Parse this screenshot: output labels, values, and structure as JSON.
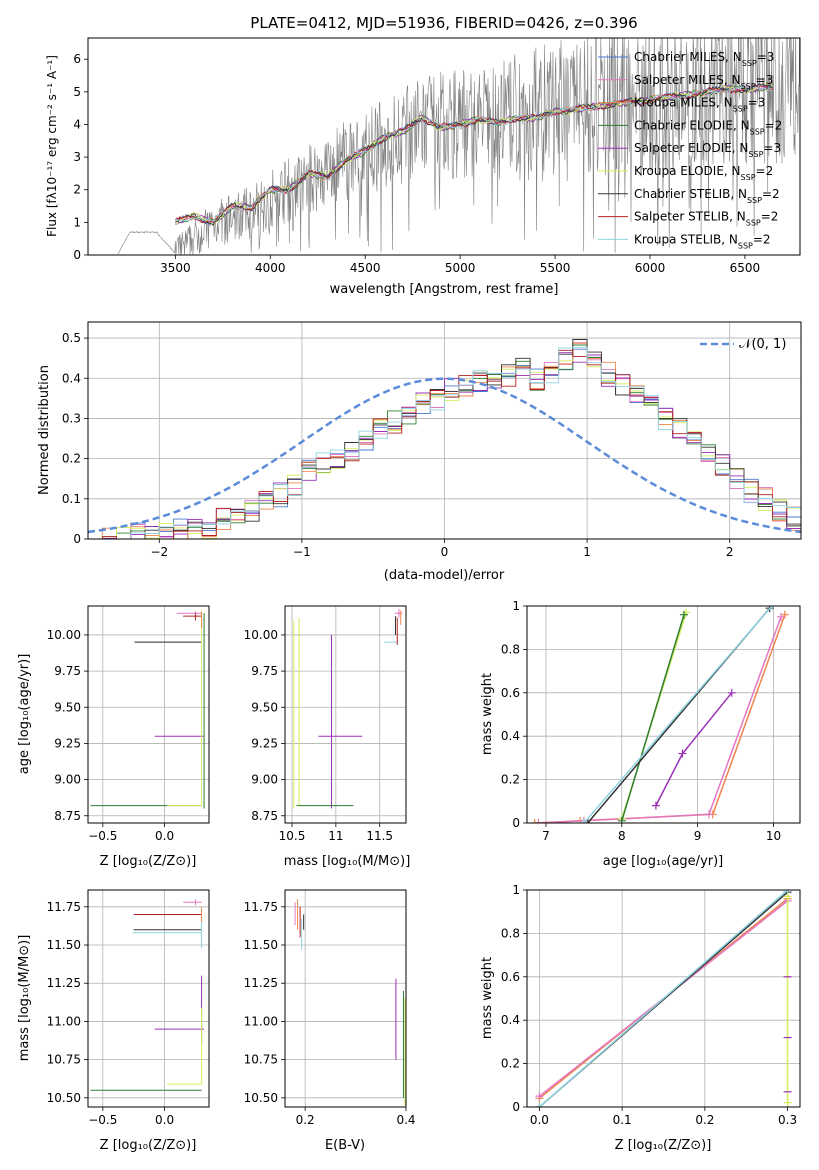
{
  "figure": {
    "title": "PLATE=0412, MJD=51936, FIBERID=0426, z=0.396"
  },
  "series_styles": [
    {
      "name": "Chabrier MILES",
      "nssp": "3",
      "color": "#4878d0"
    },
    {
      "name": "Salpeter MILES",
      "nssp": "3",
      "color": "#e377c2"
    },
    {
      "name": "Kroupa MILES",
      "nssp": "3",
      "color": "#ee854a"
    },
    {
      "name": "Chabrier ELODIE",
      "nssp": "2",
      "color": "#2e7d32"
    },
    {
      "name": "Salpeter ELODIE",
      "nssp": "3",
      "color": "#9b30b8"
    },
    {
      "name": "Kroupa ELODIE",
      "nssp": "2",
      "color": "#d4ee5e"
    },
    {
      "name": "Chabrier STELIB",
      "nssp": "2",
      "color": "#333333"
    },
    {
      "name": "Salpeter STELIB",
      "nssp": "2",
      "color": "#b22222"
    },
    {
      "name": "Kroupa STELIB",
      "nssp": "2",
      "color": "#8fd3e0"
    }
  ],
  "chart_data": [
    {
      "id": "spectrum",
      "type": "line",
      "xlabel": "wavelength [Angstrom, rest frame]",
      "ylabel": "Flux [fλ10⁻¹⁷ erg cm⁻² s⁻¹ A⁻¹]",
      "xlim": [
        3040,
        6790
      ],
      "ylim": [
        0,
        6.65
      ],
      "xticks": [
        3500,
        4000,
        4500,
        5000,
        5500,
        6000,
        6500
      ],
      "yticks": [
        0,
        1,
        2,
        3,
        4,
        5,
        6
      ],
      "grid": false,
      "legend_position": "upper-right",
      "data_color": "#808080",
      "data_anchor_x": [
        3200,
        3260,
        3400,
        3500,
        3700,
        3900,
        4000,
        4200,
        4400,
        4600,
        4800,
        5000,
        5200,
        5400,
        5600,
        5800,
        6000,
        6200,
        6400,
        6600
      ],
      "data_anchor_y": [
        0.05,
        0.7,
        0.7,
        0.05,
        1.0,
        1.3,
        1.7,
        2.3,
        2.9,
        3.4,
        3.9,
        4.1,
        4.1,
        4.3,
        4.5,
        4.6,
        4.8,
        5.0,
        5.2,
        5.1
      ],
      "model_anchor_x": [
        3500,
        3600,
        3700,
        3800,
        3900,
        4000,
        4100,
        4200,
        4300,
        4400,
        4500,
        4600,
        4700,
        4800,
        4900,
        5000,
        5100,
        5200,
        5300,
        5400,
        5500,
        5600,
        5700,
        5800,
        5900,
        6000,
        6100,
        6200,
        6300,
        6400,
        6500,
        6600
      ],
      "model_anchor_y": [
        1.0,
        1.2,
        1.0,
        1.5,
        1.45,
        2.0,
        2.0,
        2.5,
        2.4,
        2.9,
        3.2,
        3.6,
        3.8,
        4.2,
        3.9,
        4.0,
        4.15,
        4.05,
        4.2,
        4.2,
        4.4,
        4.45,
        4.55,
        4.6,
        4.7,
        4.75,
        4.85,
        4.9,
        5.0,
        5.1,
        5.05,
        5.15
      ]
    },
    {
      "id": "residuals",
      "type": "histogram",
      "xlabel": "(data-model)/error",
      "ylabel": "Normed distribution",
      "xlim": [
        -2.5,
        2.5
      ],
      "ylim": [
        0,
        0.54
      ],
      "xticks": [
        -2,
        -1,
        0,
        1,
        2
      ],
      "yticks": [
        0.0,
        0.1,
        0.2,
        0.3,
        0.4,
        0.5
      ],
      "grid": true,
      "legend_position": "upper-right",
      "gaussian_label": "𝒩(0, 1)",
      "gaussian_color": "#5b8bd9",
      "bin_width": 0.1,
      "bin_start": -2.5,
      "hist_values": [
        0.0,
        0.0,
        0.0,
        0.01,
        0.01,
        0.01,
        0.02,
        0.02,
        0.03,
        0.05,
        0.06,
        0.07,
        0.09,
        0.11,
        0.13,
        0.17,
        0.19,
        0.2,
        0.22,
        0.24,
        0.27,
        0.29,
        0.31,
        0.34,
        0.35,
        0.37,
        0.38,
        0.39,
        0.4,
        0.41,
        0.42,
        0.4,
        0.41,
        0.45,
        0.47,
        0.44,
        0.41,
        0.38,
        0.36,
        0.34,
        0.3,
        0.27,
        0.24,
        0.21,
        0.18,
        0.15,
        0.12,
        0.1,
        0.07,
        0.05,
        0.03,
        0.02
      ]
    },
    {
      "id": "age-vs-z",
      "type": "scatter",
      "xlabel": "Z [log₁₀(Z/Z⊙)]",
      "ylabel": "age  [log₁₀(age/yr)]",
      "xlim": [
        -0.62,
        0.36
      ],
      "ylim": [
        8.7,
        10.2
      ],
      "xticks": [
        -0.5,
        0.0
      ],
      "xticklabels": [
        "−0.5",
        "0.0"
      ],
      "yticks": [
        8.75,
        9.0,
        9.25,
        9.5,
        9.75,
        10.0
      ],
      "yticklabels": [
        "8.75",
        "9.00",
        "9.25",
        "9.50",
        "9.75",
        "10.00"
      ],
      "grid": true
    },
    {
      "id": "age-vs-mass",
      "type": "scatter",
      "xlabel": "mass [log₁₀(M/M⊙)]",
      "xlim": [
        10.42,
        11.8
      ],
      "ylim": [
        8.7,
        10.2
      ],
      "xticks": [
        10.5,
        11.0,
        11.5
      ],
      "yticks": [
        8.75,
        9.0,
        9.25,
        9.5,
        9.75,
        10.0
      ],
      "yticklabels": [
        "8.75",
        "9.00",
        "9.25",
        "9.50",
        "9.75",
        "10.00"
      ],
      "grid": true
    },
    {
      "id": "massweight-vs-age",
      "type": "line",
      "xlabel": "age  [log₁₀(age/yr)]",
      "ylabel": "mass weight",
      "xlim": [
        6.75,
        10.35
      ],
      "ylim": [
        0,
        1.0
      ],
      "xticks": [
        7,
        8,
        9,
        10
      ],
      "yticks": [
        0.0,
        0.2,
        0.4,
        0.6,
        0.8,
        1.0
      ],
      "grid": true,
      "series": [
        {
          "name": "Kroupa MILES",
          "x": [
            6.85,
            7.45,
            9.2,
            10.15
          ],
          "y": [
            0.0,
            0.01,
            0.04,
            0.96
          ]
        },
        {
          "name": "Salpeter MILES",
          "x": [
            6.9,
            7.5,
            9.15,
            10.1
          ],
          "y": [
            0.0,
            0.01,
            0.04,
            0.95
          ]
        },
        {
          "name": "Salpeter ELODIE",
          "x": [
            8.45,
            8.8,
            9.45
          ],
          "y": [
            0.08,
            0.32,
            0.6
          ]
        },
        {
          "name": "Kroupa ELODIE",
          "x": [
            8.0,
            8.85
          ],
          "y": [
            0.02,
            0.97
          ]
        },
        {
          "name": "Chabrier ELODIE",
          "x": [
            8.0,
            8.82
          ],
          "y": [
            0.01,
            0.96
          ]
        },
        {
          "name": "Chabrier STELIB",
          "x": [
            7.55,
            9.95
          ],
          "y": [
            0.0,
            0.99
          ]
        },
        {
          "name": "Kroupa STELIB",
          "x": [
            7.5,
            9.98
          ],
          "y": [
            0.0,
            1.0
          ]
        }
      ]
    },
    {
      "id": "mass-vs-z",
      "type": "scatter",
      "xlabel": "Z [log₁₀(Z/Z⊙)]",
      "ylabel": "mass [log₁₀(M/M⊙)]",
      "xlim": [
        -0.62,
        0.36
      ],
      "ylim": [
        10.44,
        11.86
      ],
      "xticks": [
        -0.5,
        0.0
      ],
      "xticklabels": [
        "−0.5",
        "0.0"
      ],
      "yticks": [
        10.5,
        10.75,
        11.0,
        11.25,
        11.5,
        11.75
      ],
      "yticklabels": [
        "10.50",
        "10.75",
        "11.00",
        "11.25",
        "11.50",
        "11.75"
      ],
      "grid": true
    },
    {
      "id": "mass-vs-ebv",
      "type": "scatter",
      "xlabel": "E(B-V)",
      "xlim": [
        0.16,
        0.4
      ],
      "ylim": [
        10.44,
        11.86
      ],
      "xticks": [
        0.2,
        0.4
      ],
      "xticklabels": [
        "0.2",
        "0.4"
      ],
      "yticks": [
        10.5,
        10.75,
        11.0,
        11.25,
        11.5,
        11.75
      ],
      "yticklabels": [
        "10.50",
        "10.75",
        "11.00",
        "11.25",
        "11.50",
        "11.75"
      ],
      "grid": true
    },
    {
      "id": "massweight-vs-z",
      "type": "line",
      "xlabel": "Z [log₁₀(Z/Z⊙)]",
      "ylabel": "mass weight",
      "xlim": [
        -0.015,
        0.315
      ],
      "ylim": [
        0,
        1.0
      ],
      "xticks": [
        0.0,
        0.1,
        0.2,
        0.3
      ],
      "xticklabels": [
        "0.0",
        "0.1",
        "0.2",
        "0.3"
      ],
      "yticks": [
        0.0,
        0.2,
        0.4,
        0.6,
        0.8,
        1.0
      ],
      "grid": true,
      "series": [
        {
          "name": "Kroupa MILES",
          "x": [
            0.0,
            0.3
          ],
          "y": [
            0.04,
            0.96
          ]
        },
        {
          "name": "Salpeter MILES",
          "x": [
            0.0,
            0.3
          ],
          "y": [
            0.05,
            0.95
          ]
        },
        {
          "name": "Chabrier STELIB",
          "x": [
            0.0,
            0.3
          ],
          "y": [
            0.0,
            0.99
          ]
        },
        {
          "name": "Kroupa STELIB",
          "x": [
            0.0,
            0.3
          ],
          "y": [
            0.0,
            1.0
          ]
        },
        {
          "name": "Kroupa ELODIE",
          "x": [
            0.3,
            0.3
          ],
          "y": [
            0.02,
            0.97
          ]
        }
      ]
    }
  ]
}
